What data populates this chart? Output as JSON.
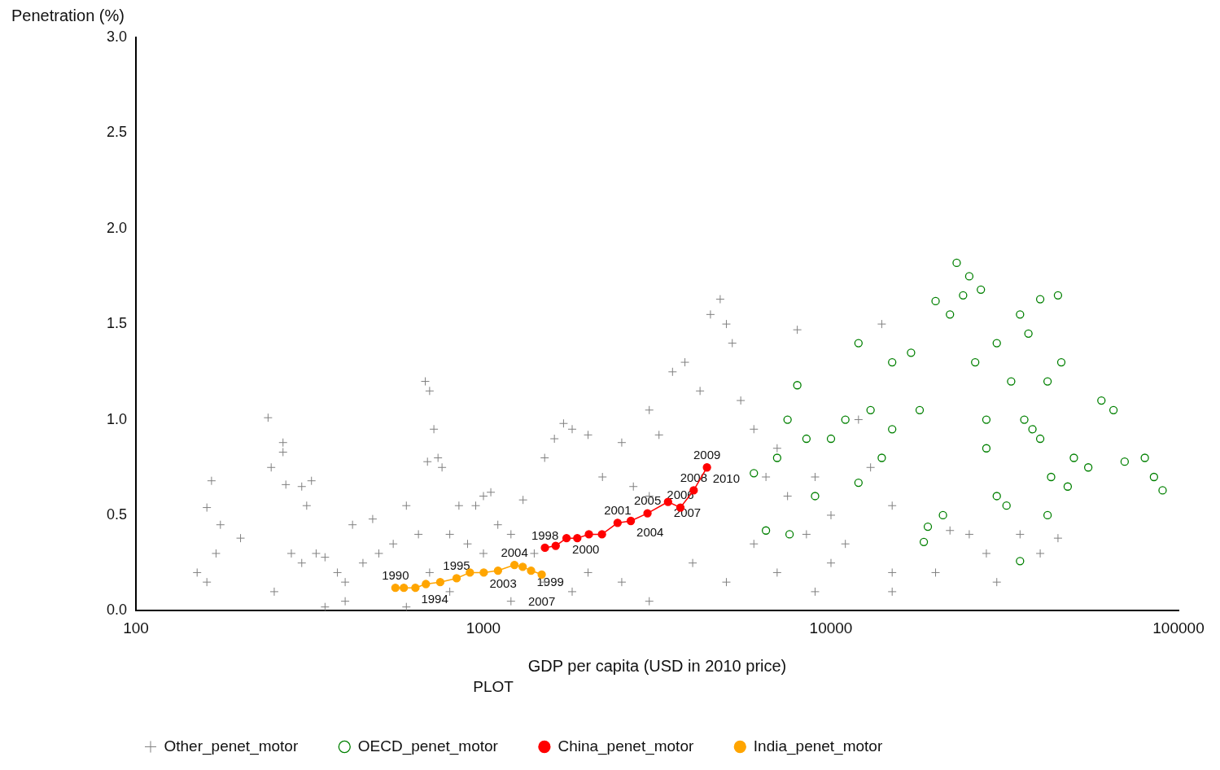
{
  "chart_data": {
    "type": "scatter",
    "xlabel": "GDP per capita (USD in 2010 price)",
    "ylabel": "Penetration (%)",
    "legend_title": "PLOT",
    "legend": "bottom",
    "log": "x",
    "grid": false,
    "xlim": [
      100,
      100000
    ],
    "xticks": [
      100,
      1000,
      10000,
      100000
    ],
    "ylim": [
      0,
      3
    ],
    "yticks": [
      {
        "value": 0,
        "label": "0.0"
      },
      {
        "value": 0.5,
        "label": "0.5"
      },
      {
        "value": 1,
        "label": "1.0"
      },
      {
        "value": 1.5,
        "label": "1.5"
      },
      {
        "value": 2,
        "label": "2.0"
      },
      {
        "value": 2.5,
        "label": "2.5"
      },
      {
        "value": 3,
        "label": "3.0"
      }
    ],
    "series": [
      {
        "name": "Other_penet_motor",
        "type": "scatter",
        "marker": "cross",
        "color": "#808080",
        "x": [
          160,
          165,
          170,
          175,
          150,
          160,
          200,
          240,
          245,
          265,
          265,
          270,
          300,
          310,
          320,
          280,
          330,
          350,
          380,
          400,
          420,
          450,
          480,
          500,
          550,
          600,
          650,
          680,
          700,
          720,
          690,
          740,
          760,
          800,
          850,
          900,
          950,
          1000,
          1050,
          1100,
          1200,
          1300,
          1400,
          1500,
          1600,
          1700,
          1800,
          2000,
          2200,
          2500,
          2700,
          3000,
          3000,
          3200,
          3500,
          3800,
          4200,
          4500,
          4800,
          5000,
          5200,
          5500,
          6000,
          6500,
          7000,
          7500,
          8000,
          8500,
          9000,
          10000,
          11000,
          12000,
          13000,
          14000,
          15000,
          15000,
          15000,
          20000,
          22000,
          25000,
          28000,
          30000,
          35000,
          40000,
          45000,
          3000,
          2500,
          2000,
          1800,
          1200,
          800,
          600,
          400,
          350,
          4000,
          5000,
          6000,
          7000,
          9000,
          10000,
          1500,
          1000,
          700,
          300,
          250
        ],
        "values": [
          0.54,
          0.68,
          0.3,
          0.45,
          0.2,
          0.15,
          0.38,
          1.01,
          0.75,
          0.88,
          0.83,
          0.66,
          0.65,
          0.55,
          0.68,
          0.3,
          0.3,
          0.28,
          0.2,
          0.15,
          0.45,
          0.25,
          0.48,
          0.3,
          0.35,
          0.55,
          0.4,
          1.2,
          1.15,
          0.95,
          0.78,
          0.8,
          0.75,
          0.4,
          0.55,
          0.35,
          0.55,
          0.6,
          0.62,
          0.45,
          0.4,
          0.58,
          0.3,
          0.8,
          0.9,
          0.98,
          0.95,
          0.92,
          0.7,
          0.88,
          0.65,
          0.6,
          1.05,
          0.92,
          1.25,
          1.3,
          1.15,
          1.55,
          1.63,
          1.5,
          1.4,
          1.1,
          0.95,
          0.7,
          0.85,
          0.6,
          1.47,
          0.4,
          0.7,
          0.5,
          0.35,
          1.0,
          0.75,
          1.5,
          0.1,
          0.2,
          0.55,
          0.2,
          0.42,
          0.4,
          0.3,
          0.15,
          0.4,
          0.3,
          0.38,
          0.05,
          0.15,
          0.2,
          0.1,
          0.05,
          0.1,
          0.02,
          0.05,
          0.02,
          0.25,
          0.15,
          0.35,
          0.2,
          0.1,
          0.25,
          0.15,
          0.3,
          0.2,
          0.25,
          0.1
        ]
      },
      {
        "name": "OECD_penet_motor",
        "type": "scatter",
        "marker": "circle",
        "color": "#008000",
        "x": [
          6000,
          6500,
          7000,
          7500,
          8000,
          8500,
          9000,
          10000,
          11000,
          12000,
          12000,
          13000,
          14000,
          15000,
          17000,
          18000,
          19000,
          20000,
          21000,
          22000,
          23000,
          24000,
          25000,
          26000,
          27000,
          28000,
          30000,
          30000,
          32000,
          33000,
          35000,
          36000,
          38000,
          40000,
          40000,
          42000,
          43000,
          45000,
          46000,
          48000,
          50000,
          55000,
          60000,
          65000,
          70000,
          80000,
          85000,
          90000,
          35000,
          18500,
          7600,
          15000,
          28000,
          37000,
          42000
        ],
        "values": [
          0.72,
          0.42,
          0.8,
          1.0,
          1.18,
          0.9,
          0.6,
          0.9,
          1.0,
          1.4,
          0.67,
          1.05,
          0.8,
          1.3,
          1.35,
          1.05,
          0.44,
          1.62,
          0.5,
          1.55,
          1.82,
          1.65,
          1.75,
          1.3,
          1.68,
          1.0,
          1.4,
          0.6,
          0.55,
          1.2,
          1.55,
          1.0,
          0.95,
          1.63,
          0.9,
          1.2,
          0.7,
          1.65,
          1.3,
          0.65,
          0.8,
          0.75,
          1.1,
          1.05,
          0.78,
          0.8,
          0.7,
          0.63,
          0.26,
          0.36,
          0.4,
          0.95,
          0.85,
          1.45,
          0.5
        ]
      },
      {
        "name": "China_penet_motor",
        "type": "line",
        "marker": "circle",
        "color": "#ff0000",
        "x": [
          1503,
          1614,
          1734,
          1862,
          2011,
          2193,
          2432,
          2655,
          2965,
          3397,
          3687,
          4027,
          4397
        ],
        "values": [
          0.33,
          0.34,
          0.38,
          0.38,
          0.4,
          0.4,
          0.46,
          0.47,
          0.51,
          0.57,
          0.54,
          0.63,
          0.75
        ]
      },
      {
        "name": "India_penet_motor",
        "type": "line",
        "marker": "circle",
        "color": "#ffa500",
        "x": [
          558,
          590,
          637,
          683,
          751,
          837,
          914,
          1002,
          1101,
          1228,
          1297,
          1371,
          1471
        ],
        "values": [
          0.12,
          0.12,
          0.12,
          0.14,
          0.15,
          0.17,
          0.2,
          0.2,
          0.21,
          0.24,
          0.23,
          0.21,
          0.19
        ]
      }
    ],
    "annotations": [
      {
        "text": "1998",
        "x": 1503,
        "y": 0.33
      },
      {
        "text": "2000",
        "x": 1734,
        "y": 0.38
      },
      {
        "text": "2001",
        "x": 2432,
        "y": 0.46
      },
      {
        "text": "2004",
        "x": 2655,
        "y": 0.47
      },
      {
        "text": "2005",
        "x": 2965,
        "y": 0.51
      },
      {
        "text": "2006",
        "x": 3687,
        "y": 0.54
      },
      {
        "text": "2007",
        "x": 3397,
        "y": 0.57
      },
      {
        "text": "2008",
        "x": 4027,
        "y": 0.63
      },
      {
        "text": "2009",
        "x": 4397,
        "y": 0.75
      },
      {
        "text": "2010",
        "x": 4397,
        "y": 0.75
      },
      {
        "text": "1990",
        "x": 558,
        "y": 0.12
      },
      {
        "text": "1994",
        "x": 637,
        "y": 0.12
      },
      {
        "text": "1995",
        "x": 837,
        "y": 0.17
      },
      {
        "text": "2003",
        "x": 1002,
        "y": 0.2
      },
      {
        "text": "2004",
        "x": 1228,
        "y": 0.24
      },
      {
        "text": "1999",
        "x": 1371,
        "y": 0.21
      },
      {
        "text": "2007",
        "x": 1471,
        "y": 0.19
      }
    ]
  }
}
